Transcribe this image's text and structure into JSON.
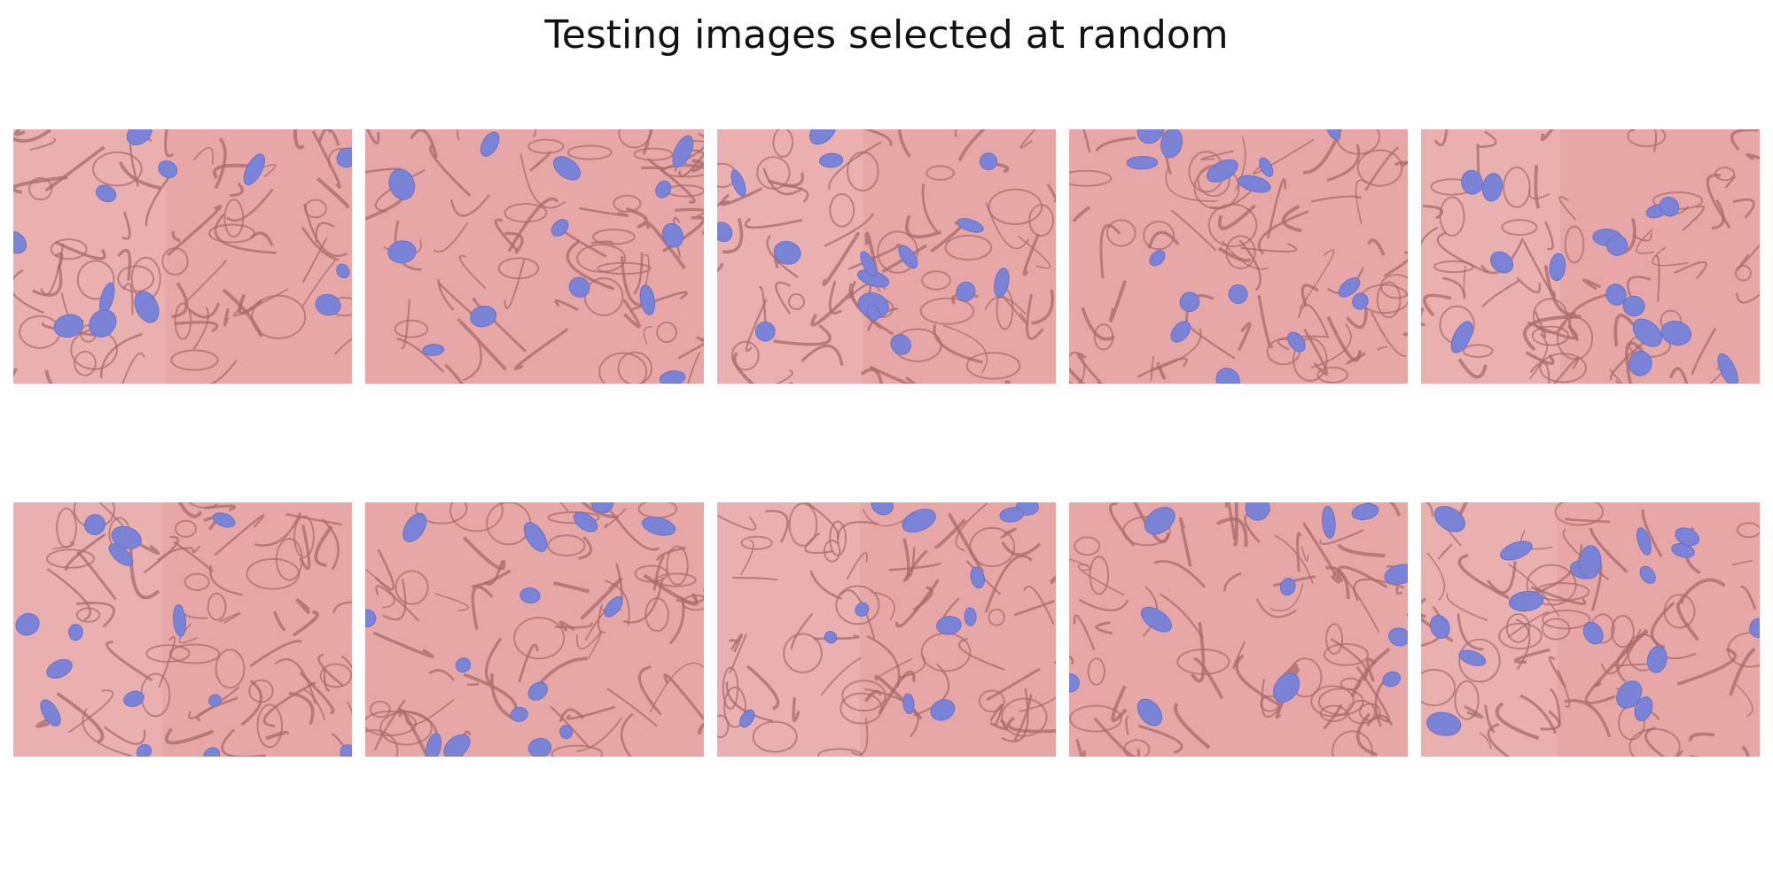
{
  "figure": {
    "title": "Testing images selected at random"
  },
  "colors": {
    "background_overlay": "#e7a7a7",
    "membrane": "#a86a6a",
    "mitochondria_overlay": "#7b83d6"
  },
  "panels": [
    {
      "row": 1,
      "col": 1,
      "overlay_classes": [
        "background",
        "mitochondria"
      ]
    },
    {
      "row": 1,
      "col": 2,
      "overlay_classes": [
        "background",
        "mitochondria"
      ]
    },
    {
      "row": 1,
      "col": 3,
      "overlay_classes": [
        "background",
        "mitochondria"
      ]
    },
    {
      "row": 1,
      "col": 4,
      "overlay_classes": [
        "background",
        "mitochondria"
      ]
    },
    {
      "row": 1,
      "col": 5,
      "overlay_classes": [
        "background",
        "mitochondria"
      ]
    },
    {
      "row": 2,
      "col": 1,
      "overlay_classes": [
        "background",
        "mitochondria"
      ]
    },
    {
      "row": 2,
      "col": 2,
      "overlay_classes": [
        "background",
        "mitochondria"
      ]
    },
    {
      "row": 2,
      "col": 3,
      "overlay_classes": [
        "background",
        "mitochondria"
      ]
    },
    {
      "row": 2,
      "col": 4,
      "overlay_classes": [
        "background",
        "mitochondria"
      ]
    },
    {
      "row": 2,
      "col": 5,
      "overlay_classes": [
        "background",
        "mitochondria"
      ]
    }
  ]
}
